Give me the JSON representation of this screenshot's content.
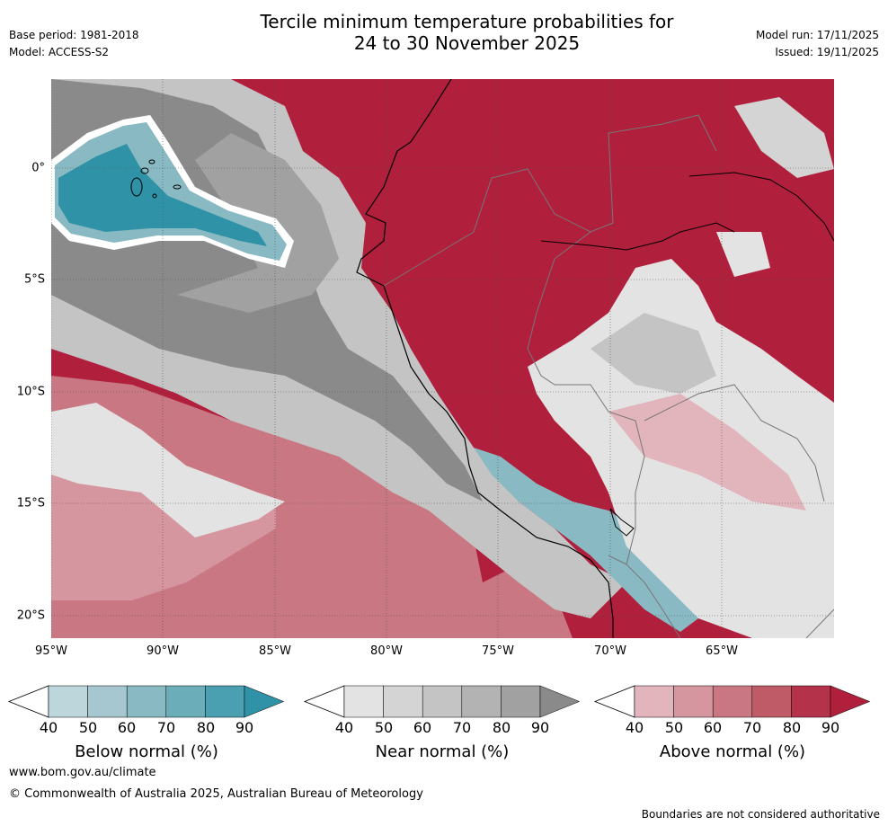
{
  "header": {
    "base_period": "Base period: 1981-2018",
    "model": "Model: ACCESS-S2",
    "title_line1": "Tercile minimum temperature probabilities for",
    "title_line2": "24 to 30 November 2025",
    "model_run": "Model run: 17/11/2025",
    "issued": "Issued: 19/11/2025"
  },
  "map": {
    "longitude_labels": [
      "95°W",
      "90°W",
      "85°W",
      "80°W",
      "75°W",
      "70°W",
      "65°W"
    ],
    "latitude_labels": [
      "0°",
      "5°S",
      "10°S",
      "15°S",
      "20°S"
    ]
  },
  "colorbars": [
    {
      "title": "Below normal (%)",
      "ticks": [
        "40",
        "50",
        "60",
        "70",
        "80",
        "90"
      ],
      "colors": [
        "#bcd6dc",
        "#a6c7cf",
        "#89b9c3",
        "#6badb9",
        "#4aa0b0",
        "#2f92a6"
      ]
    },
    {
      "title": "Near normal (%)",
      "ticks": [
        "40",
        "50",
        "60",
        "70",
        "80",
        "90"
      ],
      "colors": [
        "#e3e3e3",
        "#d4d4d4",
        "#c4c4c4",
        "#b3b3b3",
        "#a1a1a1",
        "#8a8a8a"
      ]
    },
    {
      "title": "Above normal (%)",
      "ticks": [
        "40",
        "50",
        "60",
        "70",
        "80",
        "90"
      ],
      "colors": [
        "#e2b5bc",
        "#d5969f",
        "#c97782",
        "#bf5a67",
        "#b4334a",
        "#b01f3c"
      ]
    }
  ],
  "footer": {
    "website": "www.bom.gov.au/climate",
    "copyright": "© Commonwealth of Australia 2025, Australian Bureau of Meteorology",
    "disclaimer": "Boundaries are not considered authoritative"
  }
}
